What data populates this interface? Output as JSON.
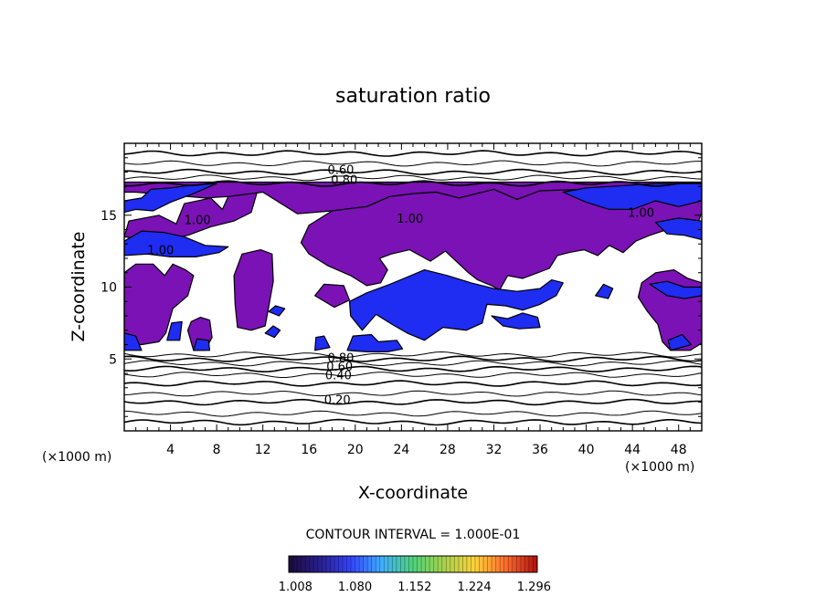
{
  "chart_data": {
    "type": "heatmap",
    "title": "saturation ratio",
    "xlabel": "X-coordinate",
    "ylabel": "Z-coordinate",
    "x_unit": "(×1000 m)",
    "z_unit": "(×1000 m)",
    "xlim": [
      0,
      50
    ],
    "ylim": [
      0,
      20
    ],
    "x_ticks": [
      4,
      8,
      12,
      16,
      20,
      24,
      28,
      32,
      36,
      40,
      44,
      48
    ],
    "y_ticks": [
      5,
      10,
      15
    ],
    "contour_interval_text": "CONTOUR INTERVAL = 1.000E-01",
    "colorbar": {
      "ticks": [
        1.008,
        1.08,
        1.152,
        1.224,
        1.296
      ],
      "tick_labels": [
        "1.008",
        "1.080",
        "1.152",
        "1.224",
        "1.296"
      ],
      "range": [
        1.0,
        1.3
      ],
      "colors": [
        "#1a0a3a",
        "#2a1f8f",
        "#3344ff",
        "#3fb0ff",
        "#4fd27a",
        "#a8d24a",
        "#ffd23a",
        "#ff6a2a",
        "#b01010"
      ]
    },
    "contour_labels": [
      {
        "text": "0.60",
        "x": 17.6,
        "z": 18.2
      },
      {
        "text": "0.80",
        "x": 17.9,
        "z": 17.5
      },
      {
        "text": "1.00",
        "x": 5.2,
        "z": 14.7
      },
      {
        "text": "1.00",
        "x": 2.0,
        "z": 12.6
      },
      {
        "text": "1.00",
        "x": 23.6,
        "z": 14.8
      },
      {
        "text": "1.00",
        "x": 43.6,
        "z": 15.2
      },
      {
        "text": "0.80",
        "x": 17.6,
        "z": 5.1
      },
      {
        "text": "0.60",
        "x": 17.5,
        "z": 4.5
      },
      {
        "text": "0.40",
        "x": 17.4,
        "z": 3.9
      },
      {
        "text": "0.20",
        "x": 17.3,
        "z": 2.2
      }
    ],
    "isolines_z": [
      0.6,
      1.2,
      2.0,
      2.6,
      3.3,
      3.9,
      4.3,
      4.7,
      5.0,
      5.3,
      17.2,
      17.6,
      18.0,
      18.6,
      19.3
    ],
    "supersaturated_regions": [
      {
        "level": "purple",
        "polygon": [
          [
            0,
            13.5
          ],
          [
            0.4,
            14.6
          ],
          [
            3,
            15
          ],
          [
            4.5,
            14.4
          ],
          [
            5.2,
            15.8
          ],
          [
            7.5,
            16.2
          ],
          [
            8.5,
            15.4
          ],
          [
            9,
            16.3
          ],
          [
            11.5,
            16.6
          ],
          [
            11,
            15.2
          ],
          [
            9.5,
            14.6
          ],
          [
            7.5,
            14.2
          ],
          [
            5.5,
            13.6
          ],
          [
            3,
            13.2
          ]
        ]
      },
      {
        "level": "purple",
        "polygon": [
          [
            0,
            17.3
          ],
          [
            50,
            17.3
          ],
          [
            50,
            16.3
          ],
          [
            47,
            16.2
          ],
          [
            44,
            16.6
          ],
          [
            40,
            16.8
          ],
          [
            36,
            16.7
          ],
          [
            34,
            16.1
          ],
          [
            32,
            16.8
          ],
          [
            29,
            16.2
          ],
          [
            27,
            16.6
          ],
          [
            25,
            16.5
          ],
          [
            23,
            16.3
          ],
          [
            21,
            15.6
          ],
          [
            18,
            15.3
          ],
          [
            15,
            15.1
          ],
          [
            12,
            16.6
          ],
          [
            9,
            16.3
          ],
          [
            7,
            16.2
          ],
          [
            4,
            16.4
          ],
          [
            1,
            16.6
          ],
          [
            0,
            16.6
          ]
        ]
      },
      {
        "level": "purple",
        "polygon": [
          [
            0,
            6.0
          ],
          [
            0,
            11.0
          ],
          [
            1,
            11.6
          ],
          [
            2.5,
            11.6
          ],
          [
            3.5,
            10.8
          ],
          [
            4.2,
            11.6
          ],
          [
            5.3,
            11.2
          ],
          [
            6.0,
            10.8
          ],
          [
            5.5,
            9.4
          ],
          [
            4.2,
            8.5
          ],
          [
            3.6,
            6.8
          ],
          [
            3.0,
            6.2
          ],
          [
            1.5,
            6.0
          ]
        ]
      },
      {
        "level": "purple",
        "polygon": [
          [
            9.5,
            10.8
          ],
          [
            10.2,
            12.3
          ],
          [
            11.8,
            12.6
          ],
          [
            12.8,
            12.3
          ],
          [
            12.9,
            10.4
          ],
          [
            12.5,
            8.6
          ],
          [
            12.2,
            7.3
          ],
          [
            11.0,
            7.0
          ],
          [
            9.8,
            7.2
          ],
          [
            9.6,
            8.8
          ]
        ]
      },
      {
        "level": "purple",
        "polygon": [
          [
            16,
            12.3
          ],
          [
            17.6,
            11.5
          ],
          [
            19.6,
            10.8
          ],
          [
            21,
            10.1
          ],
          [
            22.2,
            10.3
          ],
          [
            22.8,
            11.2
          ],
          [
            22.1,
            12.0
          ],
          [
            23.1,
            12.3
          ],
          [
            24.7,
            12.6
          ],
          [
            26.5,
            11.8
          ],
          [
            27.8,
            12.5
          ],
          [
            29,
            11.6
          ],
          [
            29.8,
            11.0
          ],
          [
            30.6,
            10.5
          ],
          [
            31.8,
            10.1
          ],
          [
            32.5,
            9.8
          ],
          [
            33.2,
            10.8
          ],
          [
            34.5,
            10.6
          ],
          [
            35.8,
            11.0
          ],
          [
            36.8,
            11.3
          ],
          [
            37.5,
            12.2
          ],
          [
            38.5,
            12.4
          ],
          [
            39.8,
            12.6
          ],
          [
            41,
            12.2
          ],
          [
            42,
            12.9
          ],
          [
            43.2,
            12.4
          ],
          [
            44.3,
            13.2
          ],
          [
            45.5,
            13.6
          ],
          [
            47,
            14.0
          ],
          [
            48.2,
            14.4
          ],
          [
            49.6,
            14.3
          ],
          [
            50,
            15.2
          ],
          [
            50,
            16.3
          ],
          [
            47,
            16.2
          ],
          [
            44,
            16.6
          ],
          [
            40,
            16.8
          ],
          [
            36,
            16.7
          ],
          [
            34,
            16.1
          ],
          [
            32,
            16.8
          ],
          [
            29,
            16.2
          ],
          [
            27,
            16.6
          ],
          [
            25,
            16.5
          ],
          [
            23,
            16.3
          ],
          [
            21,
            15.6
          ],
          [
            18,
            15.3
          ],
          [
            16,
            14.3
          ],
          [
            15.3,
            13.1
          ]
        ]
      },
      {
        "level": "purple",
        "polygon": [
          [
            44.5,
            9.3
          ],
          [
            44.8,
            10.3
          ],
          [
            46,
            11.0
          ],
          [
            47.6,
            11.2
          ],
          [
            48.8,
            10.6
          ],
          [
            50,
            10.3
          ],
          [
            50,
            6.1
          ],
          [
            49,
            5.6
          ],
          [
            47.3,
            5.6
          ],
          [
            46.6,
            6.2
          ],
          [
            46.2,
            7.4
          ],
          [
            45.3,
            8.3
          ]
        ]
      },
      {
        "level": "purple",
        "polygon": [
          [
            16.5,
            9.4
          ],
          [
            17.3,
            10.2
          ],
          [
            19.0,
            10.1
          ],
          [
            19.5,
            9.1
          ],
          [
            18.2,
            8.6
          ]
        ]
      },
      {
        "level": "purple",
        "polygon": [
          [
            5.5,
            7.0
          ],
          [
            5.8,
            7.6
          ],
          [
            6.6,
            7.9
          ],
          [
            7.4,
            7.7
          ],
          [
            7.6,
            6.5
          ],
          [
            7.0,
            5.6
          ],
          [
            6.0,
            5.6
          ]
        ]
      },
      {
        "level": "blue",
        "polygon": [
          [
            0,
            13.2
          ],
          [
            1.5,
            13.9
          ],
          [
            3.4,
            13.8
          ],
          [
            5.2,
            13.5
          ],
          [
            7,
            12.9
          ],
          [
            9,
            12.8
          ],
          [
            8.2,
            12.4
          ],
          [
            6.2,
            12.1
          ],
          [
            4,
            12.1
          ],
          [
            2,
            12.3
          ],
          [
            0,
            12.2
          ]
        ]
      },
      {
        "level": "blue",
        "polygon": [
          [
            0,
            16.0
          ],
          [
            1.5,
            16.2
          ],
          [
            2.3,
            16.8
          ],
          [
            4,
            16.9
          ],
          [
            6,
            17.1
          ],
          [
            8,
            17.2
          ],
          [
            6,
            16.5
          ],
          [
            4,
            15.9
          ],
          [
            2.5,
            15.3
          ],
          [
            1,
            15.4
          ],
          [
            0,
            15.2
          ]
        ]
      },
      {
        "level": "blue",
        "polygon": [
          [
            38,
            16.6
          ],
          [
            40,
            16.9
          ],
          [
            42,
            17.0
          ],
          [
            44,
            17.1
          ],
          [
            46,
            17.2
          ],
          [
            50,
            17.2
          ],
          [
            50,
            16.0
          ],
          [
            48,
            15.6
          ],
          [
            46,
            16.0
          ],
          [
            44,
            15.4
          ],
          [
            42,
            15.4
          ],
          [
            40,
            15.9
          ]
        ]
      },
      {
        "level": "blue",
        "polygon": [
          [
            46,
            14.5
          ],
          [
            48,
            14.8
          ],
          [
            50,
            14.6
          ],
          [
            50,
            13.3
          ],
          [
            48.5,
            13.6
          ],
          [
            47,
            13.7
          ]
        ]
      },
      {
        "level": "blue",
        "polygon": [
          [
            45.5,
            10.2
          ],
          [
            47,
            10.4
          ],
          [
            48.5,
            10.0
          ],
          [
            50,
            10.0
          ],
          [
            50,
            9.4
          ],
          [
            48.5,
            9.2
          ],
          [
            47,
            9.4
          ]
        ]
      },
      {
        "level": "blue",
        "polygon": [
          [
            26,
            11.2
          ],
          [
            28,
            10.8
          ],
          [
            30,
            10.3
          ],
          [
            32,
            9.9
          ],
          [
            34,
            9.7
          ],
          [
            36,
            9.9
          ],
          [
            37,
            10.5
          ],
          [
            38,
            10.3
          ],
          [
            37.4,
            9.4
          ],
          [
            36,
            8.8
          ],
          [
            34.5,
            8.4
          ],
          [
            33,
            8.7
          ],
          [
            31.4,
            8.8
          ],
          [
            31.0,
            7.5
          ],
          [
            29.6,
            7.0
          ],
          [
            27.6,
            7.2
          ],
          [
            26,
            6.3
          ],
          [
            24.5,
            6.8
          ],
          [
            23.2,
            7.4
          ],
          [
            21.8,
            8.1
          ],
          [
            20.6,
            7.0
          ],
          [
            19.6,
            8.0
          ],
          [
            19.5,
            9.0
          ],
          [
            21,
            9.6
          ],
          [
            23,
            10.2
          ],
          [
            24.5,
            10.7
          ]
        ]
      },
      {
        "level": "blue",
        "polygon": [
          [
            19.3,
            5.6
          ],
          [
            19.8,
            6.6
          ],
          [
            21.4,
            6.7
          ],
          [
            22.0,
            6.2
          ],
          [
            23.6,
            6.3
          ],
          [
            24.1,
            5.7
          ],
          [
            22.8,
            5.5
          ],
          [
            21,
            5.5
          ]
        ]
      },
      {
        "level": "blue",
        "polygon": [
          [
            31.8,
            8.0
          ],
          [
            33.2,
            7.8
          ],
          [
            34.5,
            8.2
          ],
          [
            35.8,
            7.9
          ],
          [
            36.0,
            7.2
          ],
          [
            34.2,
            7.1
          ],
          [
            32.8,
            7.3
          ]
        ]
      },
      {
        "level": "blue",
        "polygon": [
          [
            0,
            5.6
          ],
          [
            0,
            6.8
          ],
          [
            1,
            6.6
          ],
          [
            1.5,
            5.6
          ]
        ]
      },
      {
        "level": "blue",
        "polygon": [
          [
            16.5,
            5.6
          ],
          [
            16.6,
            6.5
          ],
          [
            17.3,
            6.6
          ],
          [
            17.8,
            5.8
          ]
        ]
      },
      {
        "level": "blue",
        "polygon": [
          [
            6.0,
            5.6
          ],
          [
            6.3,
            6.4
          ],
          [
            7.3,
            6.3
          ],
          [
            7.4,
            5.6
          ]
        ]
      },
      {
        "level": "blue",
        "polygon": [
          [
            3.7,
            6.3
          ],
          [
            4.1,
            7.5
          ],
          [
            5.0,
            7.6
          ],
          [
            4.8,
            6.3
          ]
        ]
      },
      {
        "level": "blue",
        "polygon": [
          [
            47.3,
            5.6
          ],
          [
            47.1,
            6.3
          ],
          [
            48.3,
            6.7
          ],
          [
            49.1,
            6.0
          ]
        ]
      },
      {
        "level": "blue",
        "polygon": [
          [
            12.5,
            8.3
          ],
          [
            13.1,
            8.7
          ],
          [
            13.9,
            8.5
          ],
          [
            13.4,
            8.0
          ]
        ]
      },
      {
        "level": "blue",
        "polygon": [
          [
            40.8,
            9.4
          ],
          [
            41.5,
            10.2
          ],
          [
            42.3,
            9.9
          ],
          [
            41.9,
            9.2
          ]
        ]
      },
      {
        "level": "blue",
        "polygon": [
          [
            12.2,
            6.8
          ],
          [
            12.9,
            7.3
          ],
          [
            13.5,
            7.0
          ],
          [
            13.0,
            6.5
          ]
        ]
      }
    ]
  }
}
